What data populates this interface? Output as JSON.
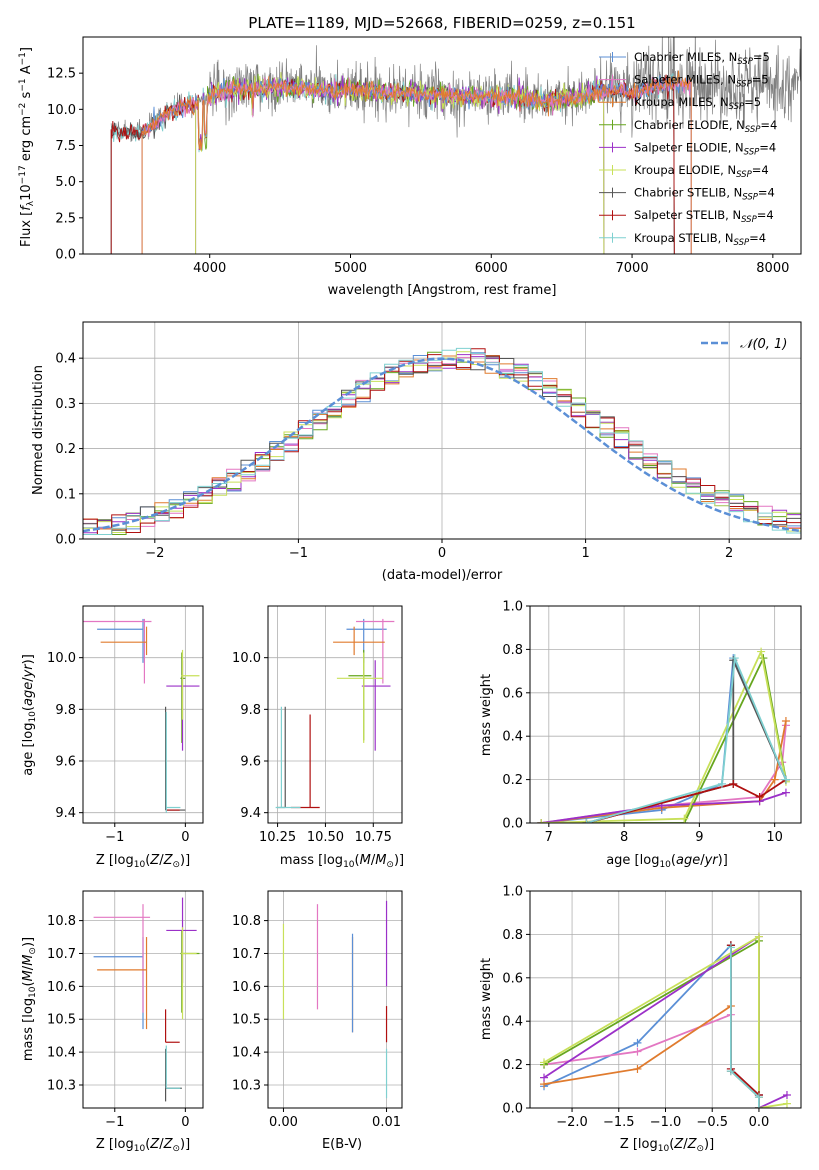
{
  "colors": {
    "chabrier_miles": "#5b8fd6",
    "salpeter_miles": "#e377c2",
    "kroupa_miles": "#e07b2e",
    "chabrier_elodie": "#66a61e",
    "salpeter_elodie": "#9b30c8",
    "kroupa_elodie": "#c8e05a",
    "chabrier_stelib": "#555555",
    "salpeter_stelib": "#b01010",
    "kroupa_stelib": "#7fd0d0",
    "data": "#808080",
    "normal": "#5b8fd6"
  },
  "chart_data": [
    {
      "id": "spectrum",
      "type": "line",
      "title": "PLATE=1189, MJD=52668, FIBERID=0259, z=0.151",
      "xlabel": "wavelength [Angstrom, rest frame]",
      "ylabel": "Flux [f_λ 10^-17 erg cm^-2 s^-1 A^-1]",
      "xlim": [
        3100,
        8200
      ],
      "ylim": [
        0,
        15
      ],
      "xticks": [
        "4000",
        "5000",
        "6000",
        "7000",
        "8000"
      ],
      "yticks": [
        "0.0",
        "2.5",
        "5.0",
        "7.5",
        "10.0",
        "12.5"
      ],
      "legend_position": "right",
      "legend": [
        {
          "label": "Chabrier MILES, N",
          "sub": "SSP",
          "suffix": "=5",
          "color": "chabrier_miles"
        },
        {
          "label": "Salpeter MILES, N",
          "sub": "SSP",
          "suffix": "=5",
          "color": "salpeter_miles"
        },
        {
          "label": "Kroupa MILES, N",
          "sub": "SSP",
          "suffix": "=5",
          "color": "kroupa_miles"
        },
        {
          "label": "Chabrier ELODIE, N",
          "sub": "SSP",
          "suffix": "=4",
          "color": "chabrier_elodie"
        },
        {
          "label": "Salpeter ELODIE, N",
          "sub": "SSP",
          "suffix": "=4",
          "color": "salpeter_elodie"
        },
        {
          "label": "Kroupa ELODIE, N",
          "sub": "SSP",
          "suffix": "=4",
          "color": "kroupa_elodie"
        },
        {
          "label": "Chabrier STELIB, N",
          "sub": "SSP",
          "suffix": "=4",
          "color": "chabrier_stelib"
        },
        {
          "label": "Salpeter STELIB, N",
          "sub": "SSP",
          "suffix": "=4",
          "color": "salpeter_stelib"
        },
        {
          "label": "Kroupa STELIB, N",
          "sub": "SSP",
          "suffix": "=4",
          "color": "kroupa_stelib"
        }
      ],
      "continuum": {
        "x": [
          3300,
          3500,
          3600,
          3700,
          3800,
          3900,
          4000,
          4100,
          4200,
          4400,
          4600,
          4800,
          5000,
          5200,
          5400,
          5600,
          5800,
          6000,
          6200,
          6400,
          6600,
          6800,
          6900,
          7000,
          7100,
          7200,
          7400
        ],
        "y": [
          8.7,
          8.4,
          9.0,
          9.8,
          10.2,
          10.5,
          11.0,
          11.3,
          11.5,
          11.6,
          11.6,
          11.4,
          11.4,
          11.3,
          11.2,
          11.1,
          11.0,
          10.9,
          11.0,
          10.6,
          10.9,
          11.3,
          11.4,
          11.2,
          11.5,
          11.8,
          11.8
        ]
      },
      "model_ranges": {
        "miles": [
          3520,
          7420
        ],
        "elodie": [
          3900,
          6800
        ],
        "stelib": [
          3300,
          7300
        ]
      }
    },
    {
      "id": "residuals",
      "type": "histogram",
      "xlabel": "(data-model)/error",
      "ylabel": "Normed distribution",
      "xlim": [
        -2.5,
        2.5
      ],
      "ylim": [
        0,
        0.48
      ],
      "xticks": [
        "−2",
        "−1",
        "0",
        "1",
        "2"
      ],
      "yticks": [
        "0.0",
        "0.1",
        "0.2",
        "0.3",
        "0.4"
      ],
      "legend_label": "𝒩(0, 1)",
      "legend_position": "top-right",
      "bin_width": 0.1
    },
    {
      "id": "age-vs-Z",
      "type": "errorbar",
      "xlabel": "Z [log10(Z/Z⊙)]",
      "ylabel": "age  [log10(age/yr)]",
      "xlim": [
        -1.45,
        0.25
      ],
      "ylim": [
        9.36,
        10.2
      ],
      "xticks": [
        "−1",
        "0"
      ],
      "yticks": [
        "9.4",
        "9.6",
        "9.8",
        "10.0"
      ],
      "points": [
        {
          "color": "chabrier_miles",
          "x": -0.6,
          "xerr": [
            0.65,
            0.0
          ],
          "y": 10.11,
          "yerr": [
            0.13,
            0.04
          ]
        },
        {
          "color": "salpeter_miles",
          "x": -0.58,
          "xerr": [
            0.9,
            0.1
          ],
          "y": 10.14,
          "yerr": [
            0.24,
            0.01
          ]
        },
        {
          "color": "kroupa_miles",
          "x": -0.55,
          "xerr": [
            0.65,
            0.0
          ],
          "y": 10.06,
          "yerr": [
            0.05,
            0.06
          ]
        },
        {
          "color": "chabrier_elodie",
          "x": -0.05,
          "xerr": [
            0.02,
            0.05
          ],
          "y": 9.92,
          "yerr": [
            0.25,
            0.1
          ]
        },
        {
          "color": "salpeter_elodie",
          "x": -0.04,
          "xerr": [
            0.23,
            0.24
          ],
          "y": 9.89,
          "yerr": [
            0.25,
            0.1
          ]
        },
        {
          "color": "kroupa_elodie",
          "x": -0.04,
          "xerr": [
            0.02,
            0.24
          ],
          "y": 9.93,
          "yerr": [
            0.17,
            0.1
          ]
        },
        {
          "color": "chabrier_stelib",
          "x": -0.28,
          "xerr": [
            0.0,
            0.28
          ],
          "y": 9.41,
          "yerr": [
            0.0,
            0.4
          ]
        },
        {
          "color": "salpeter_stelib",
          "x": -0.28,
          "xerr": [
            0.0,
            0.2
          ],
          "y": 9.41,
          "yerr": [
            0.0,
            0.0
          ]
        },
        {
          "color": "kroupa_stelib",
          "x": -0.27,
          "xerr": [
            0.0,
            0.2
          ],
          "y": 9.42,
          "yerr": [
            0.02,
            0.37
          ]
        }
      ]
    },
    {
      "id": "age-vs-mass",
      "type": "errorbar",
      "xlabel": "mass [log10(M/M⊙)]",
      "ylabel": "",
      "xlim": [
        10.2,
        10.9
      ],
      "ylim": [
        9.36,
        10.2
      ],
      "xticks": [
        "10.25",
        "10.50",
        "10.75"
      ],
      "yticks": [
        "9.4",
        "9.6",
        "9.8",
        "10.0"
      ],
      "points": [
        {
          "color": "chabrier_miles",
          "x": 10.7,
          "xerr": [
            0.09,
            0.12
          ],
          "y": 10.11,
          "yerr": [
            0.13,
            0.04
          ]
        },
        {
          "color": "salpeter_miles",
          "x": 10.8,
          "xerr": [
            0.14,
            0.06
          ],
          "y": 10.14,
          "yerr": [
            0.24,
            0.01
          ]
        },
        {
          "color": "kroupa_miles",
          "x": 10.65,
          "xerr": [
            0.11,
            0.16
          ],
          "y": 10.06,
          "yerr": [
            0.05,
            0.06
          ]
        },
        {
          "color": "chabrier_elodie",
          "x": 10.7,
          "xerr": [
            0.08,
            0.04
          ],
          "y": 9.93,
          "yerr": [
            0.25,
            0.1
          ]
        },
        {
          "color": "salpeter_elodie",
          "x": 10.76,
          "xerr": [
            0.07,
            0.08
          ],
          "y": 9.89,
          "yerr": [
            0.25,
            0.1
          ]
        },
        {
          "color": "kroupa_elodie",
          "x": 10.7,
          "xerr": [
            0.14,
            0.1
          ],
          "y": 9.92,
          "yerr": [
            0.25,
            0.1
          ]
        },
        {
          "color": "chabrier_stelib",
          "x": 10.29,
          "xerr": [
            0.04,
            0.0
          ],
          "y": 9.42,
          "yerr": [
            0.0,
            0.39
          ]
        },
        {
          "color": "salpeter_stelib",
          "x": 10.42,
          "xerr": [
            0.1,
            0.05
          ],
          "y": 9.42,
          "yerr": [
            0.0,
            0.36
          ]
        },
        {
          "color": "kroupa_stelib",
          "x": 10.27,
          "xerr": [
            0.03,
            0.1
          ],
          "y": 9.42,
          "yerr": [
            0.0,
            0.39
          ]
        }
      ]
    },
    {
      "id": "mass-weight-vs-age",
      "type": "line",
      "xlabel": "age  [log10(age/yr)]",
      "ylabel": "mass weight",
      "xlim": [
        6.75,
        10.35
      ],
      "ylim": [
        0,
        1
      ],
      "xticks": [
        "7",
        "8",
        "9",
        "10"
      ],
      "yticks": [
        "0.0",
        "0.2",
        "0.4",
        "0.6",
        "0.8",
        "1.0"
      ],
      "series": [
        {
          "color": "chabrier_miles",
          "x": [
            6.9,
            8.5,
            9.3,
            9.45,
            10.15
          ],
          "y": [
            0.0,
            0.06,
            0.18,
            0.76,
            0.2
          ]
        },
        {
          "color": "salpeter_miles",
          "x": [
            6.9,
            8.5,
            9.8,
            10.1,
            10.15
          ],
          "y": [
            0.0,
            0.08,
            0.12,
            0.28,
            0.45
          ]
        },
        {
          "color": "kroupa_miles",
          "x": [
            6.9,
            8.5,
            9.8,
            10.0,
            10.15
          ],
          "y": [
            0.0,
            0.07,
            0.1,
            0.2,
            0.47
          ]
        },
        {
          "color": "chabrier_elodie",
          "x": [
            6.9,
            8.8,
            9.85,
            10.15
          ],
          "y": [
            0.0,
            0.0,
            0.76,
            0.2
          ]
        },
        {
          "color": "salpeter_elodie",
          "x": [
            6.9,
            8.5,
            9.8,
            10.15
          ],
          "y": [
            0.0,
            0.08,
            0.1,
            0.14
          ]
        },
        {
          "color": "kroupa_elodie",
          "x": [
            6.9,
            8.8,
            9.82,
            10.15
          ],
          "y": [
            0.0,
            0.02,
            0.79,
            0.19
          ]
        },
        {
          "color": "chabrier_stelib",
          "x": [
            7.5,
            9.45,
            9.45,
            10.15
          ],
          "y": [
            0.0,
            0.18,
            0.75,
            0.2
          ]
        },
        {
          "color": "salpeter_stelib",
          "x": [
            7.5,
            9.45,
            9.8,
            10.15
          ],
          "y": [
            0.0,
            0.18,
            0.12,
            0.2
          ]
        },
        {
          "color": "kroupa_stelib",
          "x": [
            7.5,
            9.3,
            9.47,
            10.15
          ],
          "y": [
            0.0,
            0.18,
            0.76,
            0.2
          ]
        }
      ]
    },
    {
      "id": "mass-vs-Z",
      "type": "errorbar",
      "xlabel": "Z [log10(Z/Z⊙)]",
      "ylabel": "mass [log10(M/M⊙)]",
      "xlim": [
        -1.45,
        0.25
      ],
      "ylim": [
        10.23,
        10.89
      ],
      "xticks": [
        "−1",
        "0"
      ],
      "yticks": [
        "10.3",
        "10.4",
        "10.5",
        "10.6",
        "10.7",
        "10.8"
      ],
      "points": [
        {
          "color": "chabrier_miles",
          "x": -0.6,
          "xerr": [
            0.7,
            0.0
          ],
          "y": 10.69,
          "yerr": [
            0.22,
            0.06
          ]
        },
        {
          "color": "salpeter_miles",
          "x": -0.6,
          "xerr": [
            0.7,
            0.1
          ],
          "y": 10.81,
          "yerr": [
            0.29,
            0.04
          ]
        },
        {
          "color": "kroupa_miles",
          "x": -0.55,
          "xerr": [
            0.7,
            0.0
          ],
          "y": 10.65,
          "yerr": [
            0.18,
            0.1
          ]
        },
        {
          "color": "chabrier_elodie",
          "x": -0.05,
          "xerr": [
            0.02,
            0.25
          ],
          "y": 10.7,
          "yerr": [
            0.18,
            0.07
          ]
        },
        {
          "color": "salpeter_elodie",
          "x": -0.04,
          "xerr": [
            0.23,
            0.2
          ],
          "y": 10.77,
          "yerr": [
            0.16,
            0.1
          ]
        },
        {
          "color": "kroupa_elodie",
          "x": -0.04,
          "xerr": [
            0.02,
            0.2
          ],
          "y": 10.7,
          "yerr": [
            0.2,
            0.08
          ]
        },
        {
          "color": "chabrier_stelib",
          "x": -0.28,
          "xerr": [
            0.0,
            0.23
          ],
          "y": 10.29,
          "yerr": [
            0.04,
            0.12
          ]
        },
        {
          "color": "salpeter_stelib",
          "x": -0.28,
          "xerr": [
            0.0,
            0.2
          ],
          "y": 10.43,
          "yerr": [
            0.0,
            0.1
          ]
        },
        {
          "color": "kroupa_stelib",
          "x": -0.27,
          "xerr": [
            0.0,
            0.2
          ],
          "y": 10.29,
          "yerr": [
            0.0,
            0.13
          ]
        }
      ]
    },
    {
      "id": "mass-vs-EBV",
      "type": "errorbar",
      "xlabel": "E(B-V)",
      "ylabel": "",
      "xlim": [
        -0.0015,
        0.0115
      ],
      "ylim": [
        10.23,
        10.89
      ],
      "xticks": [
        "0.00",
        "0.01"
      ],
      "yticks": [
        "10.3",
        "10.4",
        "10.5",
        "10.6",
        "10.7",
        "10.8"
      ],
      "points": [
        {
          "color": "kroupa_elodie",
          "x": 0.0,
          "xerr": [
            0,
            0
          ],
          "y": 10.7,
          "yerr": [
            0.2,
            0.09
          ]
        },
        {
          "color": "salpeter_miles",
          "x": 0.0033,
          "xerr": [
            0,
            0
          ],
          "y": 10.81,
          "yerr": [
            0.28,
            0.04
          ]
        },
        {
          "color": "kroupa_miles",
          "x": 0.0067,
          "xerr": [
            0,
            0
          ],
          "y": 10.65,
          "yerr": [
            0.19,
            0.1
          ]
        },
        {
          "color": "chabrier_miles",
          "x": 0.0067,
          "xerr": [
            0,
            0
          ],
          "y": 10.69,
          "yerr": [
            0.23,
            0.07
          ]
        },
        {
          "color": "salpeter_elodie",
          "x": 0.01,
          "xerr": [
            0,
            0
          ],
          "y": 10.78,
          "yerr": [
            0.18,
            0.08
          ]
        },
        {
          "color": "salpeter_stelib",
          "x": 0.01,
          "xerr": [
            0,
            0
          ],
          "y": 10.43,
          "yerr": [
            0.0,
            0.11
          ]
        },
        {
          "color": "kroupa_stelib",
          "x": 0.01,
          "xerr": [
            0,
            0
          ],
          "y": 10.29,
          "yerr": [
            0.03,
            0.12
          ]
        }
      ]
    },
    {
      "id": "mass-weight-vs-Z",
      "type": "line",
      "xlabel": "Z [log10(Z/Z⊙)]",
      "ylabel": "mass weight",
      "xlim": [
        -2.45,
        0.45
      ],
      "ylim": [
        0,
        1
      ],
      "xticks": [
        "−2.0",
        "−1.5",
        "−1.0",
        "−0.5",
        "0.0"
      ],
      "yticks": [
        "0.0",
        "0.2",
        "0.4",
        "0.6",
        "0.8",
        "1.0"
      ],
      "series": [
        {
          "color": "chabrier_miles",
          "x": [
            -2.3,
            -1.3,
            -0.3,
            -0.3,
            0.0,
            0.0
          ],
          "y": [
            0.1,
            0.3,
            0.75,
            0.17,
            0.06,
            0.0
          ]
        },
        {
          "color": "salpeter_miles",
          "x": [
            -2.3,
            -1.3,
            -0.3,
            -0.3,
            0.0
          ],
          "y": [
            0.2,
            0.26,
            0.43,
            0.18,
            0.06
          ]
        },
        {
          "color": "kroupa_miles",
          "x": [
            -2.3,
            -1.3,
            -0.3,
            -0.3,
            0.0
          ],
          "y": [
            0.11,
            0.18,
            0.47,
            0.17,
            0.05
          ]
        },
        {
          "color": "chabrier_elodie",
          "x": [
            -2.3,
            0.0,
            0.0
          ],
          "y": [
            0.2,
            0.77,
            0.0
          ]
        },
        {
          "color": "salpeter_elodie",
          "x": [
            -2.3,
            0.0,
            0.0,
            0.3
          ],
          "y": [
            0.14,
            0.79,
            0.0,
            0.06
          ]
        },
        {
          "color": "kroupa_elodie",
          "x": [
            -2.3,
            0.0,
            0.0,
            0.3
          ],
          "y": [
            0.21,
            0.79,
            0.0,
            0.02
          ]
        },
        {
          "color": "chabrier_stelib",
          "x": [
            -0.3,
            -0.3,
            0.0,
            0.0
          ],
          "y": [
            0.75,
            0.18,
            0.06,
            0.0
          ]
        },
        {
          "color": "salpeter_stelib",
          "x": [
            -0.3,
            -0.3,
            0.0,
            0.0
          ],
          "y": [
            0.75,
            0.18,
            0.06,
            0.0
          ]
        },
        {
          "color": "kroupa_stelib",
          "x": [
            -0.3,
            -0.3,
            0.0,
            0.0
          ],
          "y": [
            0.74,
            0.17,
            0.05,
            0.0
          ]
        }
      ]
    }
  ]
}
